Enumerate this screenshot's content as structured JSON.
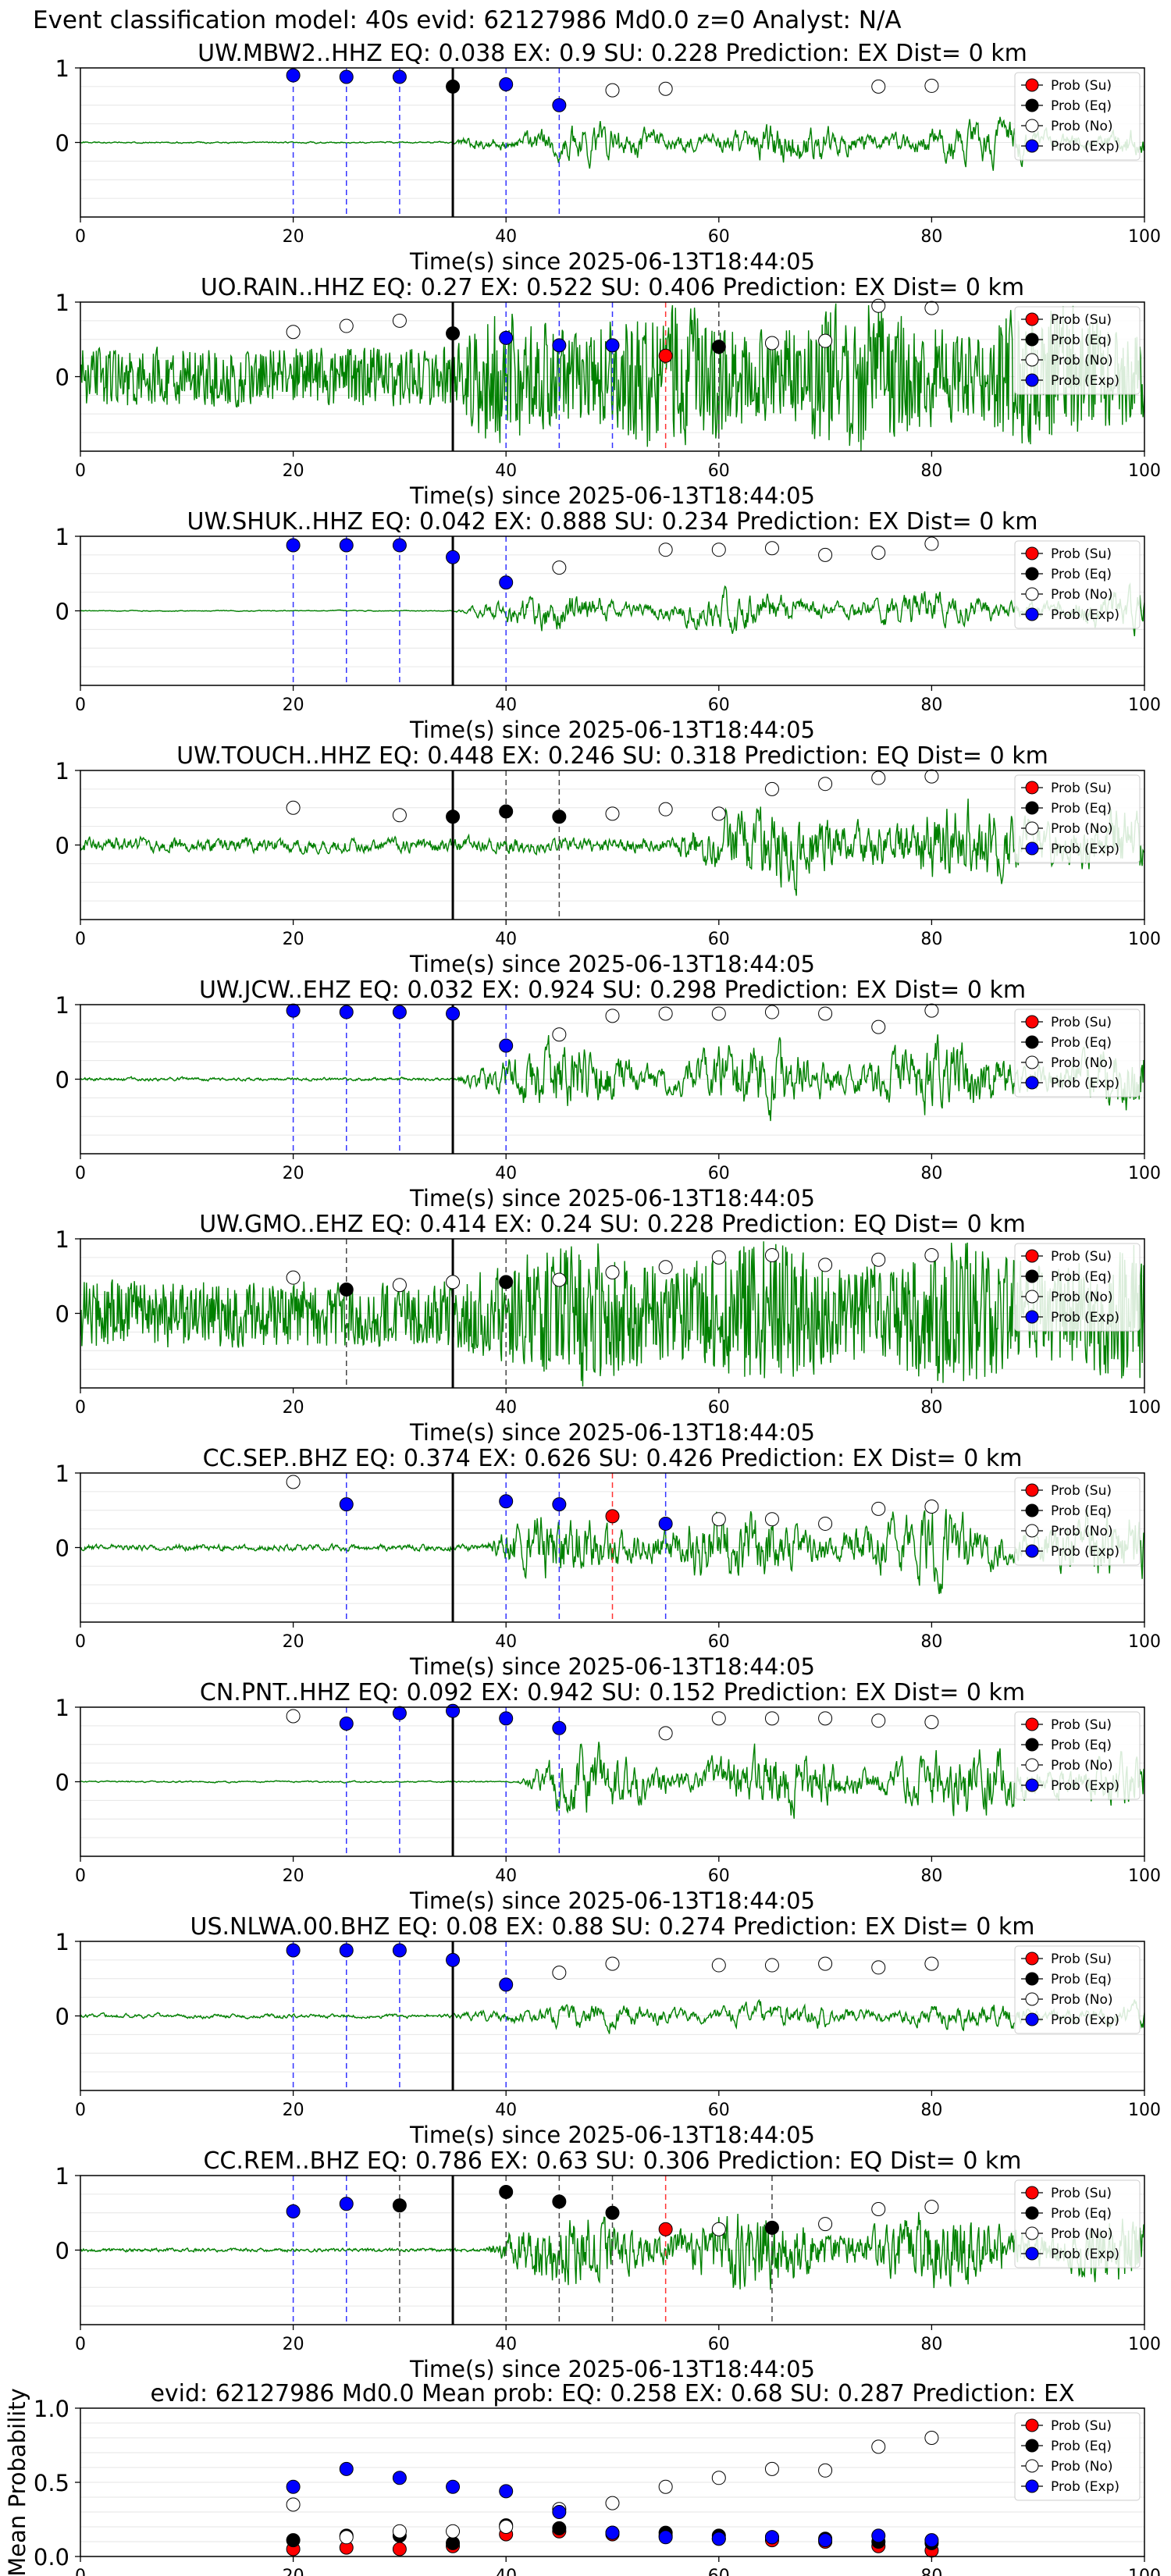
{
  "figure_title": "Event classification model: 40s evid: 62127986 Md0.0 z=0 Analyst: N/A",
  "common": {
    "xlabel": "Time(s) since 2025-06-13T18:44:05",
    "xticks": [
      0,
      20,
      40,
      60,
      80,
      100
    ],
    "yticks": [
      0,
      1
    ],
    "xlim": [
      0,
      100
    ],
    "ylim": [
      -1,
      1
    ],
    "legend": [
      "Prob (Su)",
      "Prob (Eq)",
      "Prob (No)",
      "Prob (Exp)"
    ],
    "legend_position": "right",
    "colors": {
      "trace": "#008000",
      "su": "#ff0000",
      "eq": "#000000",
      "no": "#ffffff",
      "exp": "#0000ff",
      "marker_edge": "#000000",
      "grid": "#e6e6e6",
      "su_line": "#ff3333",
      "eq_line": "#444444",
      "exp_line": "#3333ff"
    }
  },
  "chart_data": [
    {
      "type": "line",
      "title": "UW.MBW2..HHZ   EQ: 0.038  EX: 0.9  SU: 0.228   Prediction: EX    Dist= 0 km",
      "xlabel": "Time(s) since 2025-06-13T18:44:05",
      "xlim": [
        0,
        100
      ],
      "ylim": [
        -1,
        1
      ],
      "grid": true,
      "pick_time": 35,
      "waveform": {
        "noise": 0.02,
        "signal": 0.45,
        "onset": 35,
        "freq": 0.6,
        "seed": 3
      },
      "series": [
        {
          "name": "Prob (Su)",
          "x": [],
          "y": []
        },
        {
          "name": "Prob (Eq)",
          "x": [
            35
          ],
          "y": [
            0.75
          ]
        },
        {
          "name": "Prob (No)",
          "x": [
            50,
            55,
            75,
            80
          ],
          "y": [
            0.7,
            0.72,
            0.75,
            0.76
          ]
        },
        {
          "name": "Prob (Exp)",
          "x": [
            20,
            25,
            30,
            40,
            45
          ],
          "y": [
            0.9,
            0.88,
            0.88,
            0.78,
            0.5
          ]
        }
      ]
    },
    {
      "type": "line",
      "title": "UO.RAIN..HHZ   EQ: 0.27  EX: 0.522  SU: 0.406   Prediction: EX    Dist= 0 km",
      "xlabel": "Time(s) since 2025-06-13T18:44:05",
      "xlim": [
        0,
        100
      ],
      "ylim": [
        -1,
        1
      ],
      "grid": true,
      "pick_time": 35,
      "waveform": {
        "noise": 0.22,
        "signal": 0.35,
        "onset": 35,
        "freq": 3.0,
        "seed": 7
      },
      "series": [
        {
          "name": "Prob (Su)",
          "x": [
            55
          ],
          "y": [
            0.28
          ]
        },
        {
          "name": "Prob (Eq)",
          "x": [
            35,
            60
          ],
          "y": [
            0.58,
            0.4
          ]
        },
        {
          "name": "Prob (No)",
          "x": [
            20,
            25,
            30,
            65,
            70,
            75,
            80
          ],
          "y": [
            0.6,
            0.68,
            0.75,
            0.45,
            0.48,
            0.95,
            0.92
          ]
        },
        {
          "name": "Prob (Exp)",
          "x": [
            40,
            45,
            50
          ],
          "y": [
            0.52,
            0.42,
            0.42
          ]
        }
      ]
    },
    {
      "type": "line",
      "title": "UW.SHUK..HHZ   EQ: 0.042  EX: 0.888  SU: 0.234   Prediction: EX    Dist= 0 km",
      "xlabel": "Time(s) since 2025-06-13T18:44:05",
      "xlim": [
        0,
        100
      ],
      "ylim": [
        -1,
        1
      ],
      "grid": true,
      "pick_time": 35,
      "waveform": {
        "noise": 0.015,
        "signal": 0.5,
        "onset": 35,
        "freq": 0.5,
        "seed": 11
      },
      "series": [
        {
          "name": "Prob (Su)",
          "x": [],
          "y": []
        },
        {
          "name": "Prob (Eq)",
          "x": [],
          "y": []
        },
        {
          "name": "Prob (No)",
          "x": [
            45,
            55,
            60,
            65,
            70,
            75,
            80
          ],
          "y": [
            0.58,
            0.82,
            0.82,
            0.84,
            0.75,
            0.78,
            0.9
          ]
        },
        {
          "name": "Prob (Exp)",
          "x": [
            20,
            25,
            30,
            35,
            40
          ],
          "y": [
            0.88,
            0.88,
            0.88,
            0.72,
            0.38
          ]
        }
      ]
    },
    {
      "type": "line",
      "title": "UW.TOUCH..HHZ   EQ: 0.448  EX: 0.246  SU: 0.318   Prediction: EQ    Dist= 0 km",
      "xlabel": "Time(s) since 2025-06-13T18:44:05",
      "xlim": [
        0,
        100
      ],
      "ylim": [
        -1,
        1
      ],
      "grid": true,
      "pick_time": 35,
      "waveform": {
        "noise": 0.1,
        "signal": 0.45,
        "onset": 55,
        "freq": 1.2,
        "seed": 17
      },
      "series": [
        {
          "name": "Prob (Su)",
          "x": [],
          "y": []
        },
        {
          "name": "Prob (Eq)",
          "x": [
            35,
            40,
            45
          ],
          "y": [
            0.38,
            0.45,
            0.38
          ]
        },
        {
          "name": "Prob (No)",
          "x": [
            20,
            30,
            50,
            55,
            60,
            65,
            70,
            75,
            80
          ],
          "y": [
            0.5,
            0.4,
            0.42,
            0.48,
            0.42,
            0.75,
            0.82,
            0.9,
            0.92
          ]
        },
        {
          "name": "Prob (Exp)",
          "x": [],
          "y": []
        }
      ]
    },
    {
      "type": "line",
      "title": "UW.JCW..EHZ   EQ: 0.032  EX: 0.924  SU: 0.298   Prediction: EX    Dist= 0 km",
      "xlabel": "Time(s) since 2025-06-13T18:44:05",
      "xlim": [
        0,
        100
      ],
      "ylim": [
        -1,
        1
      ],
      "grid": true,
      "pick_time": 35,
      "waveform": {
        "noise": 0.03,
        "signal": 0.55,
        "onset": 35,
        "freq": 0.9,
        "seed": 23
      },
      "series": [
        {
          "name": "Prob (Su)",
          "x": [],
          "y": []
        },
        {
          "name": "Prob (Eq)",
          "x": [],
          "y": []
        },
        {
          "name": "Prob (No)",
          "x": [
            45,
            50,
            55,
            60,
            65,
            70,
            75,
            80
          ],
          "y": [
            0.6,
            0.85,
            0.88,
            0.88,
            0.9,
            0.88,
            0.7,
            0.92
          ]
        },
        {
          "name": "Prob (Exp)",
          "x": [
            20,
            25,
            30,
            35,
            40
          ],
          "y": [
            0.92,
            0.9,
            0.9,
            0.88,
            0.45
          ]
        }
      ]
    },
    {
      "type": "line",
      "title": "UW.GMO..EHZ   EQ: 0.414  EX: 0.24  SU: 0.228   Prediction: EQ    Dist= 0 km",
      "xlabel": "Time(s) since 2025-06-13T18:44:05",
      "xlim": [
        0,
        100
      ],
      "ylim": [
        -1,
        1
      ],
      "grid": true,
      "pick_time": 35,
      "waveform": {
        "noise": 0.25,
        "signal": 0.3,
        "onset": 35,
        "freq": 3.0,
        "seed": 29
      },
      "series": [
        {
          "name": "Prob (Su)",
          "x": [],
          "y": []
        },
        {
          "name": "Prob (Eq)",
          "x": [
            25,
            40
          ],
          "y": [
            0.32,
            0.42
          ]
        },
        {
          "name": "Prob (No)",
          "x": [
            20,
            30,
            35,
            45,
            50,
            55,
            60,
            65,
            70,
            75,
            80
          ],
          "y": [
            0.48,
            0.38,
            0.42,
            0.45,
            0.55,
            0.62,
            0.75,
            0.78,
            0.65,
            0.72,
            0.78
          ]
        },
        {
          "name": "Prob (Exp)",
          "x": [],
          "y": []
        }
      ]
    },
    {
      "type": "line",
      "title": "CC.SEP..BHZ   EQ: 0.374  EX: 0.626  SU: 0.426   Prediction: EX    Dist= 0 km",
      "xlabel": "Time(s) since 2025-06-13T18:44:05",
      "xlim": [
        0,
        100
      ],
      "ylim": [
        -1,
        1
      ],
      "grid": true,
      "pick_time": 35,
      "waveform": {
        "noise": 0.05,
        "signal": 0.5,
        "onset": 38,
        "freq": 1.0,
        "seed": 31
      },
      "series": [
        {
          "name": "Prob (Su)",
          "x": [
            50
          ],
          "y": [
            0.42
          ]
        },
        {
          "name": "Prob (Eq)",
          "x": [],
          "y": []
        },
        {
          "name": "Prob (No)",
          "x": [
            20,
            60,
            65,
            70,
            75,
            80
          ],
          "y": [
            0.88,
            0.38,
            0.38,
            0.32,
            0.52,
            0.55
          ]
        },
        {
          "name": "Prob (Exp)",
          "x": [
            25,
            40,
            45,
            55
          ],
          "y": [
            0.58,
            0.62,
            0.58,
            0.32
          ]
        }
      ]
    },
    {
      "type": "line",
      "title": "CN.PNT..HHZ   EQ: 0.092  EX: 0.942  SU: 0.152   Prediction: EX    Dist= 0 km",
      "xlabel": "Time(s) since 2025-06-13T18:44:05",
      "xlim": [
        0,
        100
      ],
      "ylim": [
        -1,
        1
      ],
      "grid": true,
      "pick_time": 35,
      "waveform": {
        "noise": 0.015,
        "signal": 0.6,
        "onset": 41,
        "freq": 0.8,
        "seed": 37
      },
      "series": [
        {
          "name": "Prob (Su)",
          "x": [],
          "y": []
        },
        {
          "name": "Prob (Eq)",
          "x": [],
          "y": []
        },
        {
          "name": "Prob (No)",
          "x": [
            20,
            55,
            60,
            65,
            70,
            75,
            80
          ],
          "y": [
            0.88,
            0.65,
            0.85,
            0.85,
            0.85,
            0.82,
            0.8
          ]
        },
        {
          "name": "Prob (Exp)",
          "x": [
            25,
            30,
            35,
            40,
            45
          ],
          "y": [
            0.78,
            0.92,
            0.95,
            0.85,
            0.72
          ]
        }
      ]
    },
    {
      "type": "line",
      "title": "US.NLWA.00.BHZ   EQ: 0.08  EX: 0.88  SU: 0.274   Prediction: EX    Dist= 0 km",
      "xlabel": "Time(s) since 2025-06-13T18:44:05",
      "xlim": [
        0,
        100
      ],
      "ylim": [
        -1,
        1
      ],
      "grid": true,
      "pick_time": 35,
      "waveform": {
        "noise": 0.06,
        "signal": 0.3,
        "onset": 35,
        "freq": 0.5,
        "seed": 41
      },
      "series": [
        {
          "name": "Prob (Su)",
          "x": [],
          "y": []
        },
        {
          "name": "Prob (Eq)",
          "x": [],
          "y": []
        },
        {
          "name": "Prob (No)",
          "x": [
            45,
            50,
            60,
            65,
            70,
            75,
            80
          ],
          "y": [
            0.58,
            0.7,
            0.68,
            0.68,
            0.7,
            0.65,
            0.7
          ]
        },
        {
          "name": "Prob (Exp)",
          "x": [
            20,
            25,
            30,
            35,
            40
          ],
          "y": [
            0.88,
            0.88,
            0.88,
            0.75,
            0.42
          ]
        }
      ]
    },
    {
      "type": "line",
      "title": "CC.REM..BHZ   EQ: 0.786  EX: 0.63  SU: 0.306   Prediction: EQ    Dist= 0 km",
      "xlabel": "Time(s) since 2025-06-13T18:44:05",
      "xlim": [
        0,
        100
      ],
      "ylim": [
        -1,
        1
      ],
      "grid": true,
      "pick_time": 35,
      "waveform": {
        "noise": 0.02,
        "signal": 0.45,
        "onset": 38,
        "freq": 1.5,
        "seed": 43
      },
      "series": [
        {
          "name": "Prob (Su)",
          "x": [
            55
          ],
          "y": [
            0.28
          ]
        },
        {
          "name": "Prob (Eq)",
          "x": [
            30,
            40,
            45,
            50,
            65
          ],
          "y": [
            0.6,
            0.78,
            0.65,
            0.5,
            0.3
          ]
        },
        {
          "name": "Prob (No)",
          "x": [
            60,
            70,
            75,
            80
          ],
          "y": [
            0.28,
            0.35,
            0.55,
            0.58
          ]
        },
        {
          "name": "Prob (Exp)",
          "x": [
            20,
            25
          ],
          "y": [
            0.52,
            0.62
          ]
        }
      ]
    },
    {
      "type": "scatter",
      "title": "evid: 62127986  Md0.0   Mean prob:   EQ: 0.258  EX: 0.68  SU: 0.287   Prediction: EX",
      "ylabel": "Mean Probability",
      "xlim": [
        0,
        100
      ],
      "ylim": [
        0,
        1
      ],
      "grid": true,
      "yticks": [
        0.0,
        0.5,
        1.0
      ],
      "series": [
        {
          "name": "Prob (Su)",
          "x": [
            20,
            25,
            30,
            35,
            40,
            45,
            50,
            55,
            60,
            65,
            70,
            75,
            80
          ],
          "y": [
            0.05,
            0.06,
            0.05,
            0.07,
            0.15,
            0.17,
            0.15,
            0.14,
            0.12,
            0.11,
            0.1,
            0.07,
            0.04
          ]
        },
        {
          "name": "Prob (Eq)",
          "x": [
            20,
            25,
            30,
            35,
            40,
            45,
            50,
            55,
            60,
            65,
            70,
            75,
            80
          ],
          "y": [
            0.11,
            0.14,
            0.14,
            0.09,
            0.21,
            0.19,
            0.16,
            0.16,
            0.14,
            0.13,
            0.12,
            0.1,
            0.09
          ]
        },
        {
          "name": "Prob (No)",
          "x": [
            20,
            25,
            30,
            35,
            40,
            45,
            50,
            55,
            60,
            65,
            70,
            75,
            80
          ],
          "y": [
            0.35,
            0.13,
            0.17,
            0.17,
            0.2,
            0.32,
            0.36,
            0.47,
            0.53,
            0.59,
            0.58,
            0.74,
            0.8
          ]
        },
        {
          "name": "Prob (Exp)",
          "x": [
            20,
            25,
            30,
            35,
            40,
            45,
            50,
            55,
            60,
            65,
            70,
            75,
            80
          ],
          "y": [
            0.47,
            0.59,
            0.53,
            0.47,
            0.44,
            0.3,
            0.16,
            0.13,
            0.12,
            0.13,
            0.11,
            0.14,
            0.11
          ]
        }
      ]
    }
  ]
}
